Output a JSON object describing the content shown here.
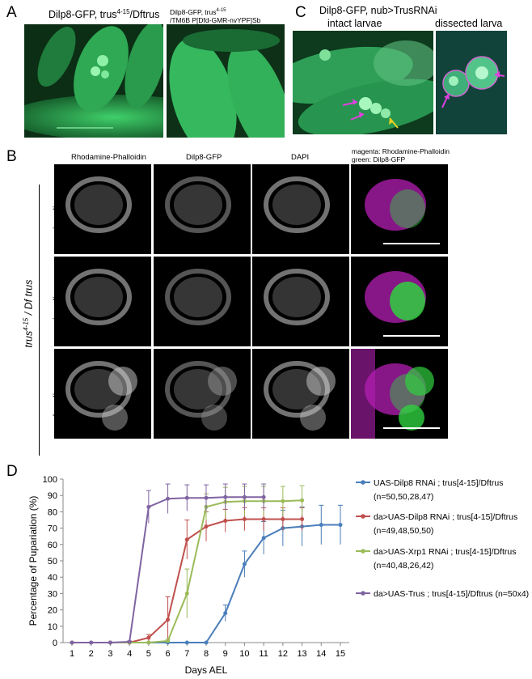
{
  "panels": {
    "A": {
      "letter": "A",
      "left_title": "Dilp8-GFP, trus",
      "left_title_sup": "4-15",
      "left_title_tail": "/Dftrus",
      "right_title_line1": "Dilp8-GFP, trus",
      "right_title_line1_sup": "4-15",
      "right_title_line2": "/TM6B P[Dfd-GMR-nvYPF]Sb"
    },
    "B": {
      "letter": "B",
      "col_headers": [
        "Rhodamine-Phalloidin",
        "Dilp8-GFP",
        "DAPI"
      ],
      "merge_header_line1": "magenta: Rhodamine-Phalloidin",
      "merge_header_line2": "green: Dilp8-GFP",
      "row_labels": [
        "wing disc",
        "wing disc",
        "leg discs"
      ],
      "genotype_main": "trus",
      "genotype_sup": "4-15",
      "genotype_tail": " / Df trus"
    },
    "C": {
      "letter": "C",
      "title": "Dilp8-GFP, nub>TrusRNAi",
      "sub_left": "intact larvae",
      "sub_right": "dissected larva"
    },
    "D": {
      "letter": "D"
    }
  },
  "colors": {
    "blue": "#4a7ebb",
    "red": "#c0504d",
    "green": "#9bbb59",
    "purple": "#8064a2",
    "magenta_arrow": "#e040e0",
    "yellow_arrow": "#e8d020"
  },
  "chart_data": {
    "type": "line",
    "title": "",
    "xlabel": "Days AEL",
    "ylabel": "Percentage of Pupariation (%)",
    "x": [
      1,
      2,
      3,
      4,
      5,
      6,
      7,
      8,
      9,
      10,
      11,
      12,
      13,
      14,
      15
    ],
    "xlim": [
      1,
      15
    ],
    "ylim": [
      0,
      100
    ],
    "yticks": [
      0,
      10,
      20,
      30,
      40,
      50,
      60,
      70,
      80,
      90,
      100
    ],
    "grid": false,
    "legend_position": "right",
    "series": [
      {
        "name": "UAS-Dilp8 RNAi ; trus[4-15]/Dftrus (n=50,50,28,47)",
        "legend_lines": [
          "UAS-Dilp8 RNAi ; trus[4-15]/Dftrus",
          "(n=50,50,28,47)"
        ],
        "color": "#4a7ebb",
        "x": [
          1,
          2,
          3,
          4,
          5,
          6,
          7,
          8,
          9,
          10,
          11,
          12,
          13,
          14,
          15
        ],
        "values": [
          0,
          0,
          0,
          0,
          0,
          0,
          0,
          0,
          18,
          48,
          64,
          70,
          71,
          72,
          72
        ],
        "err": [
          0,
          0,
          0,
          0,
          0,
          0,
          0,
          0,
          5,
          8,
          10,
          11,
          12,
          12,
          12
        ]
      },
      {
        "name": "da>UAS-Dilp8 RNAi ; trus[4-15]/Dftrus (n=49,48,50,50)",
        "legend_lines": [
          "da>UAS-Dilp8 RNAi ;  trus[4-15]/Dftrus",
          "(n=49,48,50,50)"
        ],
        "color": "#c0504d",
        "x": [
          1,
          2,
          3,
          4,
          5,
          6,
          7,
          8,
          9,
          10,
          11,
          12,
          13
        ],
        "values": [
          0,
          0,
          0,
          0,
          3,
          14,
          63,
          71,
          74.5,
          75.5,
          75.5,
          75.5,
          75.5
        ],
        "err": [
          0,
          0,
          0,
          0,
          2,
          14,
          12,
          9,
          7,
          7,
          7,
          7,
          7
        ]
      },
      {
        "name": "da>UAS-Xrp1 RNAi ; trus[4-15]/Dftrus (n=40,48,26,42)",
        "legend_lines": [
          "da>UAS-Xrp1 RNAi ; trus[4-15]/Dftrus",
          "(n=40,48,26,42)"
        ],
        "color": "#9bbb59",
        "x": [
          1,
          2,
          3,
          4,
          5,
          6,
          7,
          8,
          9,
          10,
          11,
          12,
          13
        ],
        "values": [
          0,
          0,
          0,
          0,
          0,
          1,
          30,
          83,
          86,
          86.5,
          86.5,
          86.5,
          87
        ],
        "err": [
          0,
          0,
          0,
          0,
          0,
          1,
          15,
          8,
          9,
          9,
          9,
          9,
          9
        ]
      },
      {
        "name": "da>UAS-Trus ; trus[4-15]/Dftrus (n=50x4)",
        "legend_lines": [
          "da>UAS-Trus ; trus[4-15]/Dftrus (n=50x4)"
        ],
        "color": "#8064a2",
        "x": [
          1,
          2,
          3,
          4,
          5,
          6,
          7,
          8,
          9,
          10,
          11
        ],
        "values": [
          0,
          0,
          0,
          0.5,
          83,
          88,
          88.5,
          88.5,
          89,
          89,
          89
        ],
        "err": [
          0,
          0,
          0,
          0.5,
          10,
          9,
          8,
          8,
          8,
          8,
          8
        ]
      }
    ]
  }
}
